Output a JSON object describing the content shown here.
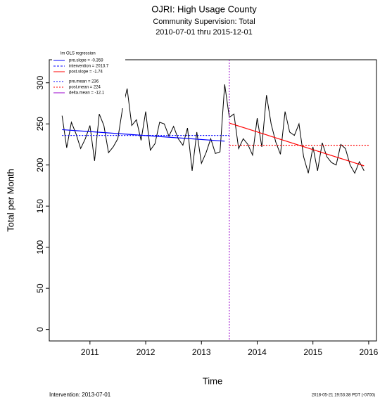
{
  "chart_data": {
    "type": "line",
    "title": "OJRI: High Usage County",
    "subtitle": "Community Supervision: Total",
    "date_range": "2010-07-01 thru 2015-12-01",
    "x_label": "Time",
    "y_label": "Total per Month",
    "footer_left": "Intervention: 2013-07-01",
    "footer_right": "2018-05-21 19:53:38 PDT (-0700)",
    "xlim": [
      2010.27,
      2016.14
    ],
    "ylim": [
      -14,
      328
    ],
    "xticks": [
      2011,
      2012,
      2013,
      2014,
      2015,
      2016
    ],
    "yticks": [
      0,
      50,
      100,
      150,
      200,
      250,
      300
    ],
    "x": [
      2010.5,
      2010.583,
      2010.667,
      2010.75,
      2010.833,
      2010.917,
      2011,
      2011.083,
      2011.167,
      2011.25,
      2011.333,
      2011.417,
      2011.5,
      2011.583,
      2011.667,
      2011.75,
      2011.833,
      2011.917,
      2012,
      2012.083,
      2012.167,
      2012.25,
      2012.333,
      2012.417,
      2012.5,
      2012.583,
      2012.667,
      2012.75,
      2012.833,
      2012.917,
      2013,
      2013.083,
      2013.167,
      2013.25,
      2013.333,
      2013.417,
      2013.5,
      2013.583,
      2013.667,
      2013.75,
      2013.833,
      2013.917,
      2014,
      2014.083,
      2014.167,
      2014.25,
      2014.333,
      2014.417,
      2014.5,
      2014.583,
      2014.667,
      2014.75,
      2014.833,
      2014.917,
      2015,
      2015.083,
      2015.167,
      2015.25,
      2015.333,
      2015.417,
      2015.5,
      2015.583,
      2015.667,
      2015.75,
      2015.833,
      2015.917
    ],
    "series": [
      {
        "color": "#000000",
        "values": [
          260,
          221,
          252,
          238,
          220,
          232,
          248,
          205,
          262,
          248,
          215,
          222,
          232,
          268,
          293,
          248,
          255,
          230,
          265,
          218,
          226,
          252,
          250,
          235,
          247,
          232,
          224,
          245,
          193,
          240,
          202,
          215,
          232,
          214,
          216,
          298,
          258,
          262,
          220,
          232,
          225,
          212,
          257,
          222,
          285,
          250,
          228,
          213,
          265,
          240,
          236,
          250,
          210,
          190,
          222,
          193,
          227,
          210,
          203,
          200,
          225,
          220,
          200,
          190,
          204,
          193
        ]
      }
    ],
    "fit_lines": [
      {
        "color": "#0000ff",
        "dash": "none",
        "x": [
          2010.5,
          2013.417
        ],
        "values": [
          243,
          229
        ]
      },
      {
        "color": "#0000ff",
        "dash": "2,2",
        "x": [
          2010.5,
          2013.5
        ],
        "values": [
          236,
          236
        ]
      },
      {
        "color": "#ff0000",
        "dash": "none",
        "x": [
          2013.5,
          2015.917
        ],
        "values": [
          251,
          199
        ]
      },
      {
        "color": "#ff0000",
        "dash": "2,2",
        "x": [
          2013.5,
          2016
        ],
        "values": [
          224,
          224
        ]
      }
    ],
    "intervention_line": {
      "x": 2013.5,
      "color": "#9900cc"
    },
    "legend_title": "lm OLS regression",
    "legend": [
      {
        "name": "pre.slope    = -0.359",
        "color": "#0000ff",
        "dash": "none"
      },
      {
        "name": "intervention = 2013.7",
        "color": "#0000ff",
        "dash": "3,2"
      },
      {
        "name": "post.slope   = -1.74",
        "color": "#ff0000",
        "dash": "none"
      },
      {
        "name": "pre.mean    = 236",
        "color": "#0000ff",
        "dash": "2,2"
      },
      {
        "name": "post.mean   = 224",
        "color": "#ff0000",
        "dash": "2,2"
      },
      {
        "name": "delta.mean = -12.1",
        "color": "#9900cc",
        "dash": "none"
      }
    ]
  }
}
